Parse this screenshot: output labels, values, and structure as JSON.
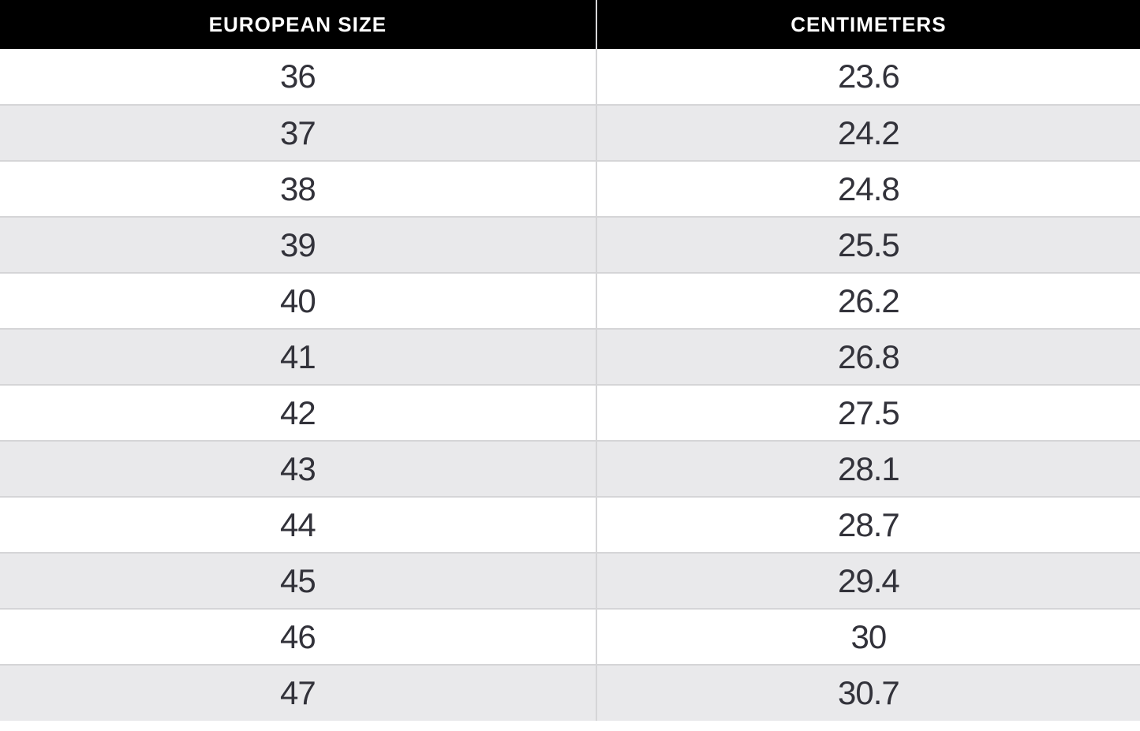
{
  "table": {
    "columns": [
      {
        "id": "eu",
        "label": "EUROPEAN SIZE"
      },
      {
        "id": "cm",
        "label": "CENTIMETERS"
      }
    ],
    "rows": [
      [
        "36",
        "23.6"
      ],
      [
        "37",
        "24.2"
      ],
      [
        "38",
        "24.8"
      ],
      [
        "39",
        "25.5"
      ],
      [
        "40",
        "26.2"
      ],
      [
        "41",
        "26.8"
      ],
      [
        "42",
        "27.5"
      ],
      [
        "43",
        "28.1"
      ],
      [
        "44",
        "28.7"
      ],
      [
        "45",
        "29.4"
      ],
      [
        "46",
        "30"
      ],
      [
        "47",
        "30.7"
      ]
    ]
  },
  "chart_data": {
    "type": "table",
    "columns": [
      "EUROPEAN SIZE",
      "CENTIMETERS"
    ],
    "rows": [
      [
        36,
        23.6
      ],
      [
        37,
        24.2
      ],
      [
        38,
        24.8
      ],
      [
        39,
        25.5
      ],
      [
        40,
        26.2
      ],
      [
        41,
        26.8
      ],
      [
        42,
        27.5
      ],
      [
        43,
        28.1
      ],
      [
        44,
        28.7
      ],
      [
        45,
        29.4
      ],
      [
        46,
        30
      ],
      [
        47,
        30.7
      ]
    ]
  },
  "colors": {
    "header_bg": "#000000",
    "header_text": "#ffffff",
    "row_bg": "#ffffff",
    "row_alt_bg": "#e9e9eb",
    "border": "#d5d5d7",
    "cell_text": "#32323a"
  }
}
